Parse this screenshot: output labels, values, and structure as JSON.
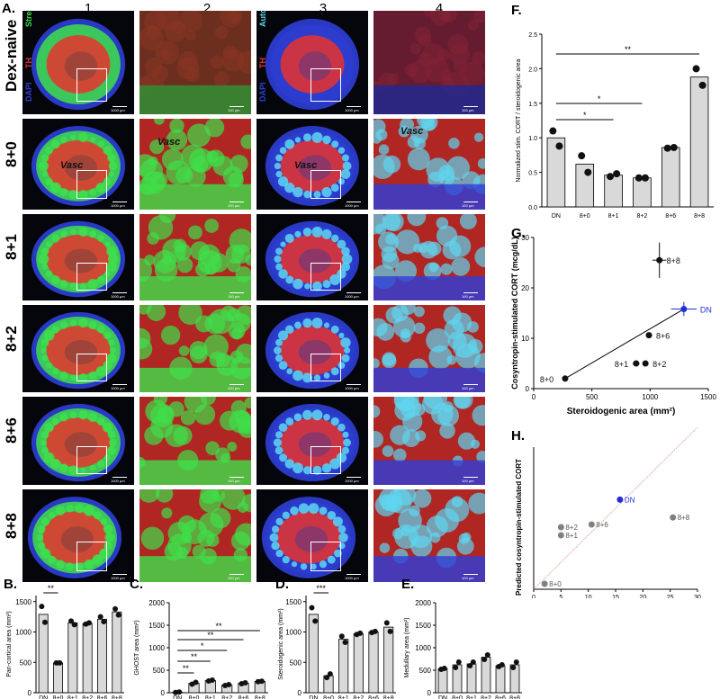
{
  "figure": {
    "panel_letters": {
      "A": "A.",
      "B": "B.",
      "C": "C.",
      "D": "D.",
      "E": "E.",
      "F": "F.",
      "G": "G.",
      "H": "H."
    },
    "column_headers": [
      "1",
      "2",
      "3",
      "4"
    ],
    "row_headers": [
      "Dex-naive",
      "8+0",
      "8+1",
      "8+2",
      "8+6",
      "8+8"
    ],
    "stain_labels_col1": {
      "strep": "Strep",
      "th": "TH",
      "dapi": "DAPI"
    },
    "stain_labels_col3": {
      "autofl": "AutoFl",
      "th": "TH",
      "dapi": "DAPI"
    },
    "vasc_label": "Vasc",
    "scalebar_low": "1000 µm",
    "scalebar_high": "100 µm",
    "colors": {
      "green": "#3fe04a",
      "red": "#e8322b",
      "blue": "#2e3fd8",
      "cyan": "#5fd6f0",
      "bar": "#d9d9d9",
      "dot": "#111111",
      "dn_blue": "#1f2fd6",
      "h_gray": "#808080",
      "identity_line": "#e59a9a"
    }
  },
  "chart_data": [
    {
      "id": "B",
      "type": "bar",
      "categories": [
        "DN",
        "8+0",
        "8+1",
        "8+2",
        "8+6",
        "8+8"
      ],
      "values": [
        1290,
        490,
        1150,
        1140,
        1210,
        1330
      ],
      "points": [
        [
          1420,
          1160
        ],
        [
          490,
          490
        ],
        [
          1180,
          1120
        ],
        [
          1130,
          1150
        ],
        [
          1250,
          1170
        ],
        [
          1380,
          1280
        ]
      ],
      "ylabel": "Pan-cortical area (mm²)",
      "ylim": [
        0,
        1600
      ],
      "yticks": [
        "0",
        "500",
        "1000",
        "1500"
      ],
      "sig": [
        {
          "from": 0,
          "to": 1,
          "label": "**"
        }
      ]
    },
    {
      "id": "C",
      "type": "bar",
      "categories": [
        "DN",
        "8+0",
        "8+1",
        "8+2",
        "8+6",
        "8+8"
      ],
      "values": [
        10,
        210,
        270,
        170,
        210,
        250
      ],
      "points": [
        [
          5,
          15
        ],
        [
          190,
          230
        ],
        [
          260,
          280
        ],
        [
          160,
          180
        ],
        [
          200,
          220
        ],
        [
          245,
          255
        ]
      ],
      "ylabel": "GHOST area (mm²)",
      "ylim": [
        0,
        2000
      ],
      "yticks": [
        "0",
        "500",
        "1000",
        "1500",
        "2000"
      ],
      "sig": [
        {
          "from": 0,
          "to": 1,
          "label": "**"
        },
        {
          "from": 0,
          "to": 2,
          "label": "**"
        },
        {
          "from": 0,
          "to": 3,
          "label": "*"
        },
        {
          "from": 0,
          "to": 4,
          "label": "**"
        },
        {
          "from": 0,
          "to": 5,
          "label": "**"
        }
      ]
    },
    {
      "id": "D",
      "type": "bar",
      "categories": [
        "DN",
        "8+0",
        "8+1",
        "8+2",
        "8+6",
        "8+8"
      ],
      "values": [
        1290,
        280,
        880,
        970,
        1000,
        1080
      ],
      "points": [
        [
          1400,
          1180
        ],
        [
          250,
          310
        ],
        [
          930,
          830
        ],
        [
          960,
          980
        ],
        [
          990,
          1010
        ],
        [
          1150,
          1010
        ]
      ],
      "ylabel": "Steroidogenic area (mm²)",
      "ylim": [
        0,
        1600
      ],
      "yticks": [
        "0",
        "500",
        "1000",
        "1500"
      ],
      "sig": [
        {
          "from": 0,
          "to": 1,
          "label": "***"
        }
      ]
    },
    {
      "id": "E",
      "type": "bar",
      "categories": [
        "DN",
        "8+0",
        "8+1",
        "8+2",
        "8+6",
        "8+8"
      ],
      "values": [
        530,
        620,
        640,
        790,
        600,
        620
      ],
      "points": [
        [
          520,
          540
        ],
        [
          560,
          680
        ],
        [
          600,
          680
        ],
        [
          740,
          840
        ],
        [
          580,
          620
        ],
        [
          560,
          680
        ]
      ],
      "ylabel": "Medullary area (mm²)",
      "ylim": [
        0,
        2000
      ],
      "yticks": [
        "0",
        "500",
        "1000",
        "1500",
        "2000"
      ],
      "sig": []
    },
    {
      "id": "F",
      "type": "bar",
      "categories": [
        "DN",
        "8+0",
        "8+1",
        "8+2",
        "8+6",
        "8+8"
      ],
      "values": [
        1.0,
        0.62,
        0.46,
        0.42,
        0.86,
        1.88
      ],
      "points": [
        [
          1.1,
          0.88
        ],
        [
          0.74,
          0.5
        ],
        [
          0.44,
          0.48
        ],
        [
          0.42,
          0.42
        ],
        [
          0.85,
          0.86
        ],
        [
          2.0,
          1.76
        ]
      ],
      "ylabel": "Normalized stim. CORT / steroidogenic area",
      "ylim": [
        0,
        2.5
      ],
      "yticks": [
        "0.0",
        "0.5",
        "1.0",
        "1.5",
        "2.0",
        "2.5"
      ],
      "sig": [
        {
          "from": 0,
          "to": 2,
          "label": "*"
        },
        {
          "from": 0,
          "to": 3,
          "label": "*"
        },
        {
          "from": 0,
          "to": 5,
          "label": "**"
        }
      ]
    },
    {
      "id": "G",
      "type": "scatter",
      "xlabel": "Steroidogenic area (mm²)",
      "ylabel": "Cosyntropin-stimulated CORT (mcg/dL)",
      "xlim": [
        0,
        1500
      ],
      "ylim": [
        0,
        30
      ],
      "xticks": [
        "0",
        "500",
        "1000",
        "1500"
      ],
      "yticks": [
        "0",
        "10",
        "20",
        "30"
      ],
      "points": [
        {
          "label": "8+0",
          "x": 270,
          "y": 2,
          "xerr": 20,
          "yerr": 0.4,
          "color": "#111111"
        },
        {
          "label": "8+1",
          "x": 880,
          "y": 5,
          "xerr": 30,
          "yerr": 0.4,
          "color": "#111111"
        },
        {
          "label": "8+2",
          "x": 960,
          "y": 5,
          "xerr": 20,
          "yerr": 0.4,
          "color": "#111111"
        },
        {
          "label": "8+6",
          "x": 990,
          "y": 10.6,
          "xerr": 15,
          "yerr": 0.3,
          "color": "#111111"
        },
        {
          "label": "8+8",
          "x": 1080,
          "y": 25.5,
          "xerr": 60,
          "yerr": 3.5,
          "color": "#111111"
        },
        {
          "label": "DN",
          "x": 1290,
          "y": 15.8,
          "xerr": 110,
          "yerr": 1.4,
          "color": "#1f2fd6"
        }
      ],
      "fit": {
        "x": [
          270,
          1290
        ],
        "y": [
          2,
          15.8
        ]
      }
    },
    {
      "id": "H",
      "type": "scatter",
      "xlabel": "Actual cosyntropin-stimulated CORT",
      "ylabel": "Predicted cosyntropin-stimulated CORT",
      "xlim": [
        0,
        30
      ],
      "ylim": [
        0,
        30
      ],
      "xticks": [
        "0",
        "5",
        "10",
        "15",
        "20",
        "25",
        "30"
      ],
      "points": [
        {
          "label": "8+0",
          "x": 2,
          "y": 1,
          "color": "#808080"
        },
        {
          "label": "8+1",
          "x": 5,
          "y": 10,
          "color": "#808080"
        },
        {
          "label": "8+2",
          "x": 5,
          "y": 11.5,
          "color": "#808080"
        },
        {
          "label": "8+6",
          "x": 10.6,
          "y": 12,
          "color": "#808080"
        },
        {
          "label": "8+8",
          "x": 25.5,
          "y": 13.3,
          "color": "#808080"
        },
        {
          "label": "DN",
          "x": 15.8,
          "y": 16.6,
          "color": "#1f2fd6"
        }
      ],
      "identity_line": true
    }
  ]
}
